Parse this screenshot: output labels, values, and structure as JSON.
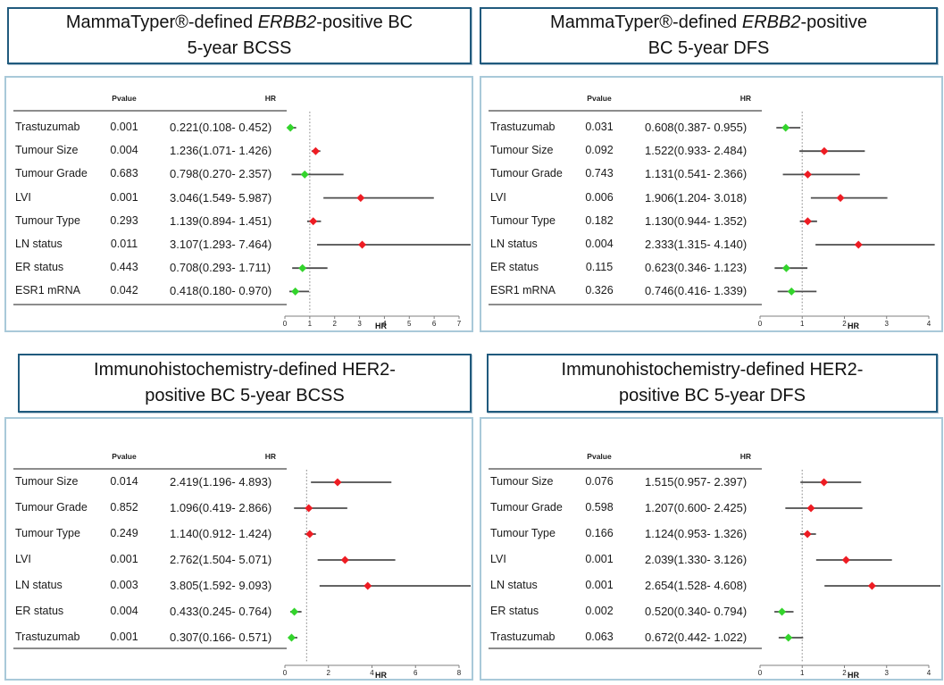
{
  "palette": {
    "marker_red": "#ee1c23",
    "marker_green": "#33d42c",
    "error_bar": "#4d4d4d",
    "axis_line": "#7f7f7f",
    "ref_line": "#9c9c9c",
    "rule_line": "#8c8c8c",
    "title_border": "#205a7d",
    "panel_border": "#a9c9d9",
    "text": "#1a1a1a"
  },
  "chart_data": [
    {
      "type": "forest",
      "title_plain": "MammaTyper®-defined ERBB2-positive BC 5-year BCSS",
      "title_lines": [
        [
          {
            "text": "MammaTyper®-defined "
          },
          {
            "text": "ERBB2",
            "italic": true
          },
          {
            "text": "-positive BC"
          }
        ],
        [
          {
            "text": "5-year BCSS"
          }
        ]
      ],
      "col_pvalue": "Pvalue",
      "col_hr": "HR",
      "xlabel": "HR",
      "x_ticks": [
        0,
        1,
        2,
        3,
        4,
        5,
        6,
        7
      ],
      "xlim": [
        0,
        7.5
      ],
      "ref_line": 1,
      "rows": [
        {
          "label": "Trastuzumab",
          "pvalue": "0.001",
          "hr_text": "0.221(0.108- 0.452)",
          "hr": 0.221,
          "lo": 0.108,
          "hi": 0.452,
          "color": "green"
        },
        {
          "label": "Tumour Size",
          "pvalue": "0.004",
          "hr_text": "1.236(1.071- 1.426)",
          "hr": 1.236,
          "lo": 1.071,
          "hi": 1.426,
          "color": "red"
        },
        {
          "label": "Tumour Grade",
          "pvalue": "0.683",
          "hr_text": "0.798(0.270- 2.357)",
          "hr": 0.798,
          "lo": 0.27,
          "hi": 2.357,
          "color": "green"
        },
        {
          "label": "LVI",
          "pvalue": "0.001",
          "hr_text": "3.046(1.549- 5.987)",
          "hr": 3.046,
          "lo": 1.549,
          "hi": 5.987,
          "color": "red"
        },
        {
          "label": "Tumour Type",
          "pvalue": "0.293",
          "hr_text": "1.139(0.894- 1.451)",
          "hr": 1.139,
          "lo": 0.894,
          "hi": 1.451,
          "color": "red"
        },
        {
          "label": "LN status",
          "pvalue": "0.011",
          "hr_text": "3.107(1.293- 7.464)",
          "hr": 3.107,
          "lo": 1.293,
          "hi": 7.464,
          "color": "red"
        },
        {
          "label": "ER status",
          "pvalue": "0.443",
          "hr_text": "0.708(0.293- 1.711)",
          "hr": 0.708,
          "lo": 0.293,
          "hi": 1.711,
          "color": "green"
        },
        {
          "label": "ESR1 mRNA",
          "pvalue": "0.042",
          "hr_text": "0.418(0.180- 0.970)",
          "hr": 0.418,
          "lo": 0.18,
          "hi": 0.97,
          "color": "green"
        }
      ]
    },
    {
      "type": "forest",
      "title_plain": "MammaTyper®-defined ERBB2-positive BC 5-year DFS",
      "title_lines": [
        [
          {
            "text": "MammaTyper®-defined "
          },
          {
            "text": "ERBB2",
            "italic": true
          },
          {
            "text": "-positive"
          }
        ],
        [
          {
            "text": "BC 5-year DFS"
          }
        ]
      ],
      "col_pvalue": "Pvalue",
      "col_hr": "HR",
      "xlabel": "HR",
      "x_ticks": [
        0,
        1,
        2,
        3,
        4
      ],
      "xlim": [
        0,
        4.3
      ],
      "ref_line": 1,
      "rows": [
        {
          "label": "Trastuzumab",
          "pvalue": "0.031",
          "hr_text": "0.608(0.387- 0.955)",
          "hr": 0.608,
          "lo": 0.387,
          "hi": 0.955,
          "color": "green"
        },
        {
          "label": "Tumour Size",
          "pvalue": "0.092",
          "hr_text": "1.522(0.933- 2.484)",
          "hr": 1.522,
          "lo": 0.933,
          "hi": 2.484,
          "color": "red"
        },
        {
          "label": "Tumour Grade",
          "pvalue": "0.743",
          "hr_text": "1.131(0.541- 2.366)",
          "hr": 1.131,
          "lo": 0.541,
          "hi": 2.366,
          "color": "red"
        },
        {
          "label": "LVI",
          "pvalue": "0.006",
          "hr_text": "1.906(1.204- 3.018)",
          "hr": 1.906,
          "lo": 1.204,
          "hi": 3.018,
          "color": "red"
        },
        {
          "label": "Tumour Type",
          "pvalue": "0.182",
          "hr_text": "1.130(0.944- 1.352)",
          "hr": 1.13,
          "lo": 0.944,
          "hi": 1.352,
          "color": "red"
        },
        {
          "label": "LN status",
          "pvalue": "0.004",
          "hr_text": "2.333(1.315- 4.140)",
          "hr": 2.333,
          "lo": 1.315,
          "hi": 4.14,
          "color": "red"
        },
        {
          "label": "ER status",
          "pvalue": "0.115",
          "hr_text": "0.623(0.346- 1.123)",
          "hr": 0.623,
          "lo": 0.346,
          "hi": 1.123,
          "color": "green"
        },
        {
          "label": "ESR1 mRNA",
          "pvalue": "0.326",
          "hr_text": "0.746(0.416- 1.339)",
          "hr": 0.746,
          "lo": 0.416,
          "hi": 1.339,
          "color": "green"
        }
      ]
    },
    {
      "type": "forest",
      "title_plain": "Immunohistochemistry-defined HER2-positive BC 5-year BCSS",
      "title_lines": [
        [
          {
            "text": "Immunohistochemistry-defined HER2-"
          }
        ],
        [
          {
            "text": "positive BC 5-year BCSS"
          }
        ]
      ],
      "col_pvalue": "Pvalue",
      "col_hr": "HR",
      "xlabel": "HR",
      "x_ticks": [
        0,
        2,
        4,
        6,
        8
      ],
      "xlim": [
        0,
        9.3
      ],
      "ref_line": 1,
      "rows": [
        {
          "label": "Tumour Size",
          "pvalue": "0.014",
          "hr_text": "2.419(1.196- 4.893)",
          "hr": 2.419,
          "lo": 1.196,
          "hi": 4.893,
          "color": "red"
        },
        {
          "label": "Tumour Grade",
          "pvalue": "0.852",
          "hr_text": "1.096(0.419- 2.866)",
          "hr": 1.096,
          "lo": 0.419,
          "hi": 2.866,
          "color": "red"
        },
        {
          "label": "Tumour Type",
          "pvalue": "0.249",
          "hr_text": "1.140(0.912- 1.424)",
          "hr": 1.14,
          "lo": 0.912,
          "hi": 1.424,
          "color": "red"
        },
        {
          "label": "LVI",
          "pvalue": "0.001",
          "hr_text": "2.762(1.504- 5.071)",
          "hr": 2.762,
          "lo": 1.504,
          "hi": 5.071,
          "color": "red"
        },
        {
          "label": "LN status",
          "pvalue": "0.003",
          "hr_text": "3.805(1.592- 9.093)",
          "hr": 3.805,
          "lo": 1.592,
          "hi": 9.093,
          "color": "red"
        },
        {
          "label": "ER status",
          "pvalue": "0.004",
          "hr_text": "0.433(0.245- 0.764)",
          "hr": 0.433,
          "lo": 0.245,
          "hi": 0.764,
          "color": "green"
        },
        {
          "label": "Trastuzumab",
          "pvalue": "0.001",
          "hr_text": "0.307(0.166- 0.571)",
          "hr": 0.307,
          "lo": 0.166,
          "hi": 0.571,
          "color": "green"
        }
      ]
    },
    {
      "type": "forest",
      "title_plain": "Immunohistochemistry-defined HER2-positive BC 5-year DFS",
      "title_lines": [
        [
          {
            "text": "Immunohistochemistry-defined HER2-"
          }
        ],
        [
          {
            "text": "positive BC 5-year DFS"
          }
        ]
      ],
      "col_pvalue": "Pvalue",
      "col_hr": "HR",
      "xlabel": "HR",
      "x_ticks": [
        0,
        1,
        2,
        3,
        4
      ],
      "xlim": [
        0,
        4.7
      ],
      "ref_line": 1,
      "rows": [
        {
          "label": "Tumour Size",
          "pvalue": "0.076",
          "hr_text": "1.515(0.957- 2.397)",
          "hr": 1.515,
          "lo": 0.957,
          "hi": 2.397,
          "color": "red"
        },
        {
          "label": "Tumour Grade",
          "pvalue": "0.598",
          "hr_text": "1.207(0.600- 2.425)",
          "hr": 1.207,
          "lo": 0.6,
          "hi": 2.425,
          "color": "red"
        },
        {
          "label": "Tumour Type",
          "pvalue": "0.166",
          "hr_text": "1.124(0.953- 1.326)",
          "hr": 1.124,
          "lo": 0.953,
          "hi": 1.326,
          "color": "red"
        },
        {
          "label": "LVI",
          "pvalue": "0.001",
          "hr_text": "2.039(1.330- 3.126)",
          "hr": 2.039,
          "lo": 1.33,
          "hi": 3.126,
          "color": "red"
        },
        {
          "label": "LN status",
          "pvalue": "0.001",
          "hr_text": "2.654(1.528- 4.608)",
          "hr": 2.654,
          "lo": 1.528,
          "hi": 4.608,
          "color": "red"
        },
        {
          "label": "ER status",
          "pvalue": "0.002",
          "hr_text": "0.520(0.340- 0.794)",
          "hr": 0.52,
          "lo": 0.34,
          "hi": 0.794,
          "color": "green"
        },
        {
          "label": "Trastuzumab",
          "pvalue": "0.063",
          "hr_text": "0.672(0.442- 1.022)",
          "hr": 0.672,
          "lo": 0.442,
          "hi": 1.022,
          "color": "green"
        }
      ]
    }
  ]
}
